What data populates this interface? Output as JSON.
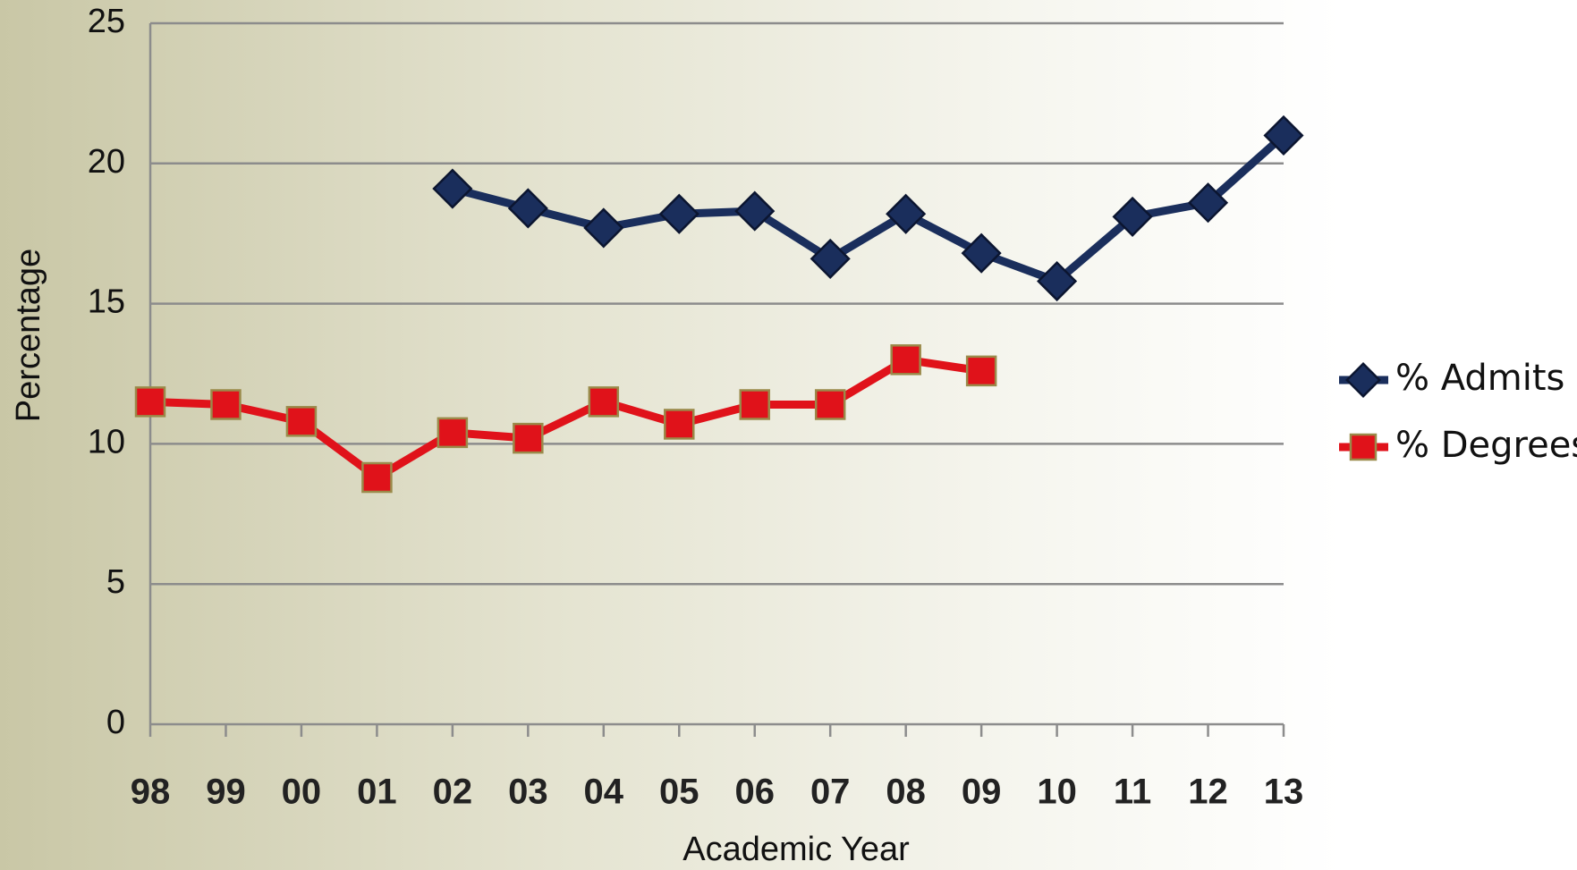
{
  "chart_data": {
    "type": "line",
    "x_label": "Academic Year",
    "y_label": "Percentage",
    "categories": [
      "98",
      "99",
      "00",
      "01",
      "02",
      "03",
      "04",
      "05",
      "06",
      "07",
      "08",
      "09",
      "10",
      "11",
      "12",
      "13"
    ],
    "series": [
      {
        "name": "% Admits",
        "color": "#1a2e5c",
        "marker": "diamond",
        "values": [
          null,
          null,
          null,
          null,
          19.1,
          18.4,
          17.7,
          18.2,
          18.3,
          16.6,
          18.2,
          16.8,
          15.8,
          18.1,
          18.6,
          21.0
        ]
      },
      {
        "name": "% Degrees",
        "color": "#e0121a",
        "marker": "square",
        "values": [
          11.5,
          11.4,
          10.8,
          8.8,
          10.4,
          10.2,
          11.5,
          10.7,
          11.4,
          11.4,
          13.0,
          12.6,
          null,
          null,
          null,
          null
        ]
      }
    ],
    "ylim": [
      0,
      25
    ],
    "yticks": [
      0,
      5,
      10,
      15,
      20,
      25
    ],
    "grid": true,
    "legend": "right"
  }
}
